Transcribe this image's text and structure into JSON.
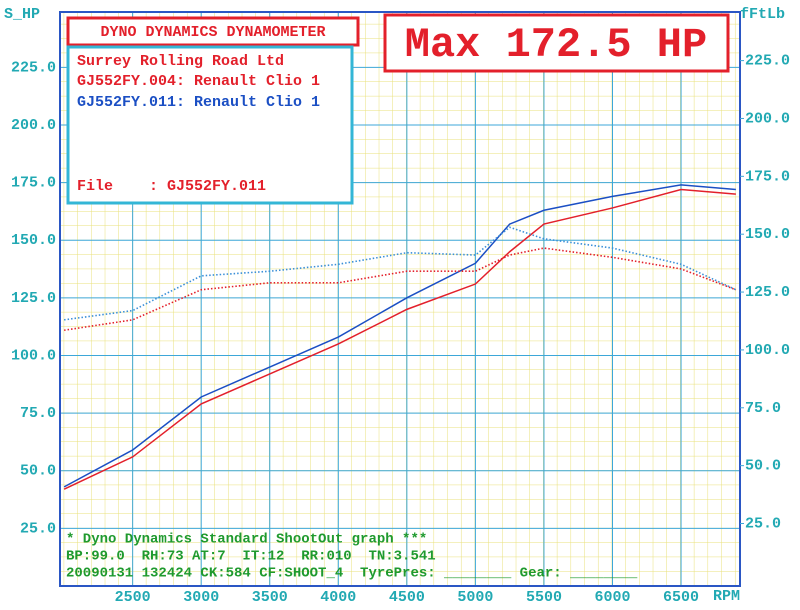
{
  "chart_data": {
    "type": "line",
    "title": "DYNO DYNAMICS DYNAMOMETER",
    "annotation": "Max 172.5 HP",
    "company": "Surrey Rolling Road Ltd",
    "file": "File    : GJ552FY.011",
    "notes": [
      "* Dyno Dynamics Standard ShootOut graph ***",
      "BP:99.0  RH:73 AT:7  IT:12  RR:010  TN:3.541",
      "20090131 132424 CK:584 CF:SHOOT_4  TyrePres: ________ Gear: ________"
    ],
    "y_label": "S_HP",
    "y2_label": "fFtLb",
    "x_label": "RPM",
    "x": [
      2000,
      2500,
      3000,
      3500,
      4000,
      4500,
      5000,
      5250,
      5500,
      6000,
      6500,
      6900
    ],
    "series": [
      {
        "name": "GJ552FY.004: Renault Clio 1",
        "color": "#e3202b",
        "style": "solid",
        "values": [
          42,
          56,
          79,
          92,
          105,
          120,
          131,
          145,
          157,
          164,
          172,
          170
        ]
      },
      {
        "name": "GJ552FY.011: Renault Clio 1",
        "color": "#1b4fc4",
        "style": "solid",
        "values": [
          43,
          59,
          82,
          95,
          108,
          125,
          140,
          157,
          163,
          169,
          174,
          172
        ]
      },
      {
        "color": "#e3202b",
        "style": "dotted",
        "axis": "y2",
        "values": [
          108.5,
          113,
          126,
          129,
          129,
          134,
          134,
          141,
          144,
          140,
          135,
          126
        ]
      },
      {
        "color": "#3a8fd8",
        "style": "dotted",
        "axis": "y2",
        "values": [
          113,
          117,
          132,
          134,
          137,
          142,
          141,
          153,
          148,
          144,
          137,
          126
        ]
      }
    ],
    "xlim": [
      1970,
      6930
    ],
    "xticks": [
      2500,
      3000,
      3500,
      4000,
      4500,
      5000,
      5500,
      6000,
      6500
    ],
    "ylim": [
      0,
      249
    ],
    "yticks": [
      {
        "value": 25,
        "label": "25.0"
      },
      {
        "value": 50,
        "label": "50.0"
      },
      {
        "value": 75,
        "label": "75.0"
      },
      {
        "value": 100,
        "label": "100.0"
      },
      {
        "value": 125,
        "label": "125.0"
      },
      {
        "value": 150,
        "label": "150.0"
      },
      {
        "value": 175,
        "label": "175.0"
      },
      {
        "value": 200,
        "label": "200.0"
      },
      {
        "value": 225,
        "label": "225.0"
      }
    ],
    "y2lim": [
      -2,
      246
    ],
    "y2ticks": [
      {
        "value": 25,
        "label": "25.0"
      },
      {
        "value": 50,
        "label": "50.0"
      },
      {
        "value": 75,
        "label": "75.0"
      },
      {
        "value": 100,
        "label": "100.0"
      },
      {
        "value": 125,
        "label": "125.0"
      },
      {
        "value": 150,
        "label": "150.0"
      },
      {
        "value": 175,
        "label": "175.0"
      },
      {
        "value": 200,
        "label": "200.0"
      },
      {
        "value": 225,
        "label": "225.0"
      }
    ],
    "grid": true
  }
}
